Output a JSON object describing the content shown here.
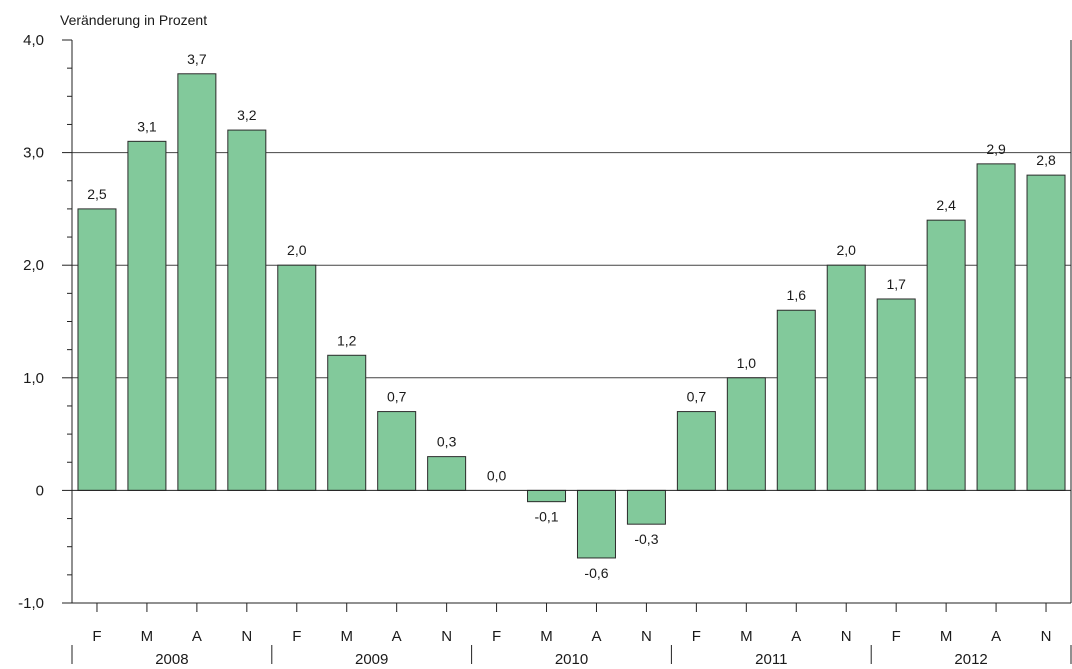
{
  "chart_data": {
    "type": "bar",
    "ylabel": "Veränderung in Prozent",
    "ylim": [
      -1.0,
      4.0
    ],
    "yticks": [
      {
        "value": -1.0,
        "label": "-1,0"
      },
      {
        "value": 0,
        "label": "0"
      },
      {
        "value": 1.0,
        "label": "1,0"
      },
      {
        "value": 2.0,
        "label": "2,0"
      },
      {
        "value": 3.0,
        "label": "3,0"
      },
      {
        "value": 4.0,
        "label": "4,0"
      }
    ],
    "gridlines": [
      1.0,
      2.0,
      3.0
    ],
    "categories": [
      "F",
      "M",
      "A",
      "N",
      "F",
      "M",
      "A",
      "N",
      "F",
      "M",
      "A",
      "N",
      "F",
      "M",
      "A",
      "N",
      "F",
      "M",
      "A",
      "N"
    ],
    "values": [
      2.5,
      3.1,
      3.7,
      3.2,
      2.0,
      1.2,
      0.7,
      0.3,
      0.0,
      -0.1,
      -0.6,
      -0.3,
      0.7,
      1.0,
      1.6,
      2.0,
      1.7,
      2.4,
      2.9,
      2.8
    ],
    "value_labels": [
      "2,5",
      "3,1",
      "3,7",
      "3,2",
      "2,0",
      "1,2",
      "0,7",
      "0,3",
      "0,0",
      "-0,1",
      "-0,6",
      "-0,3",
      "0,7",
      "1,0",
      "1,6",
      "2,0",
      "1,7",
      "2,4",
      "2,9",
      "2,8"
    ],
    "years": [
      "2008",
      "2009",
      "2010",
      "2011",
      "2012"
    ],
    "bar_color": "#82c99b",
    "bar_stroke": "#2b2b2b"
  }
}
